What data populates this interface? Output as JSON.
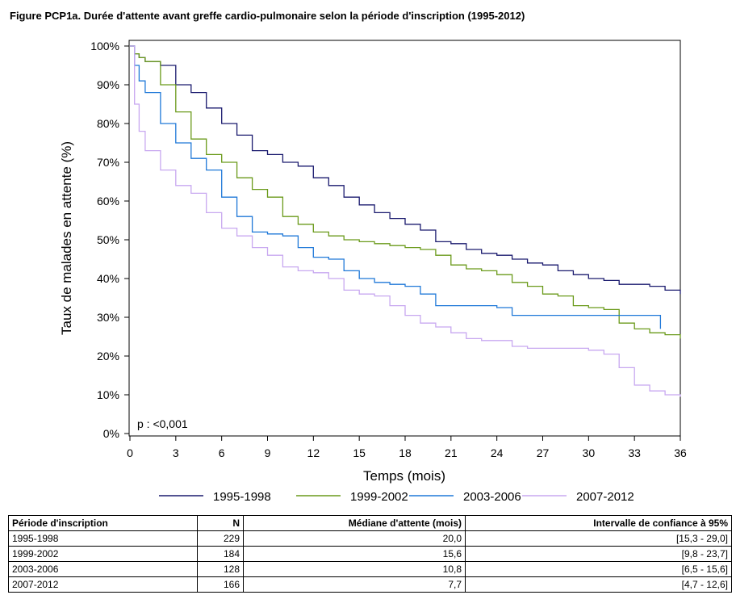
{
  "title": "Figure PCP1a. Durée d'attente avant greffe cardio-pulmonaire selon la période d'inscription (1995-2012)",
  "annotation": "p : <0,001",
  "chart_data": {
    "type": "line",
    "title": "Figure PCP1a. Durée d'attente avant greffe cardio-pulmonaire selon la période d'inscription (1995-2012)",
    "xlabel": "Temps (mois)",
    "ylabel": "Taux de malades en attente (%)",
    "xlim": [
      0,
      36
    ],
    "ylim": [
      0,
      100
    ],
    "xticks": [
      "0",
      "3",
      "6",
      "9",
      "12",
      "15",
      "18",
      "21",
      "24",
      "27",
      "30",
      "33",
      "36"
    ],
    "yticks": [
      "0%",
      "10%",
      "20%",
      "30%",
      "40%",
      "50%",
      "60%",
      "70%",
      "80%",
      "90%",
      "100%"
    ],
    "grid": false,
    "legend": "bottom",
    "series": [
      {
        "name": "1995-1998",
        "color": "#1a1a6e",
        "x": [
          0,
          0.3,
          0.6,
          1,
          2,
          3,
          4,
          5,
          6,
          7,
          8,
          9,
          10,
          11,
          12,
          13,
          14,
          15,
          16,
          17,
          18,
          19,
          20,
          21,
          22,
          23,
          24,
          25,
          26,
          27,
          28,
          29,
          30,
          31,
          32,
          33,
          34,
          35,
          36
        ],
        "y": [
          100,
          98,
          97,
          96,
          95,
          90,
          88,
          84,
          80,
          77,
          73,
          72,
          70,
          69,
          66,
          64,
          61,
          59,
          57,
          55.5,
          54,
          52.5,
          49.5,
          49,
          47.5,
          46.5,
          46,
          45,
          44,
          43.5,
          42,
          41,
          40,
          39.5,
          38.5,
          38.5,
          38,
          37,
          36
        ]
      },
      {
        "name": "1999-2002",
        "color": "#6a9a1a",
        "x": [
          0,
          0.3,
          0.6,
          1,
          2,
          3,
          4,
          5,
          6,
          7,
          8,
          9,
          10,
          11,
          12,
          13,
          14,
          15,
          16,
          17,
          18,
          19,
          20,
          21,
          22,
          23,
          24,
          25,
          26,
          27,
          28,
          29,
          30,
          31,
          32,
          33,
          34,
          35,
          36
        ],
        "y": [
          100,
          98,
          97,
          96,
          90,
          83,
          76,
          72,
          70,
          66,
          63,
          61,
          56,
          54,
          52,
          51,
          50,
          49.5,
          49,
          48.5,
          48,
          47.5,
          46,
          43.5,
          42.5,
          42,
          41,
          39,
          38,
          36,
          35.5,
          33,
          32.5,
          32,
          28.5,
          27,
          26,
          25.5,
          24.5
        ]
      },
      {
        "name": "2003-2006",
        "color": "#1f78d8",
        "x": [
          0,
          0.3,
          0.6,
          1,
          2,
          3,
          4,
          5,
          6,
          7,
          8,
          9,
          10,
          11,
          12,
          13,
          14,
          15,
          16,
          17,
          18,
          19,
          20,
          21,
          22,
          23,
          24,
          25,
          26,
          27,
          28,
          29,
          30,
          31,
          32,
          33,
          34,
          34.6,
          34.7
        ],
        "y": [
          100,
          95,
          91,
          88,
          80,
          75,
          71,
          68,
          61,
          56,
          52,
          51.5,
          51,
          48,
          45.5,
          45,
          42,
          40,
          39,
          38.5,
          38,
          36,
          33,
          33,
          33,
          33,
          32.5,
          30.5,
          30.5,
          30.5,
          30.5,
          30.5,
          30.5,
          30.5,
          30.5,
          30.5,
          30.5,
          30.5,
          27
        ]
      },
      {
        "name": "2007-2012",
        "color": "#c8a8f0",
        "x": [
          0,
          0.3,
          0.6,
          1,
          2,
          3,
          4,
          5,
          6,
          7,
          8,
          9,
          10,
          11,
          12,
          13,
          14,
          15,
          16,
          17,
          18,
          19,
          20,
          21,
          22,
          23,
          24,
          25,
          26,
          27,
          28,
          29,
          30,
          31,
          32,
          33,
          34,
          35,
          36
        ],
        "y": [
          100,
          85,
          78,
          73,
          68,
          64,
          62,
          57,
          53,
          51,
          48,
          46,
          43,
          42,
          41.5,
          40,
          37,
          36,
          35.5,
          33,
          30.5,
          28.5,
          27.5,
          26,
          24.5,
          24,
          24,
          22.5,
          22,
          22,
          22,
          22,
          21.5,
          20.5,
          17,
          12.5,
          11,
          10,
          9.5
        ]
      }
    ]
  },
  "legend": [
    {
      "label": "1995-1998",
      "color": "#1a1a6e"
    },
    {
      "label": "1999-2002",
      "color": "#6a9a1a"
    },
    {
      "label": "2003-2006",
      "color": "#1f78d8"
    },
    {
      "label": "2007-2012",
      "color": "#c8a8f0"
    }
  ],
  "table": {
    "headers": [
      "Période d'inscription",
      "N",
      "Médiane d'attente (mois)",
      "Intervalle de confiance à 95%"
    ],
    "rows": [
      [
        "1995-1998",
        "229",
        "20,0",
        "[15,3 - 29,0]"
      ],
      [
        "1999-2002",
        "184",
        "15,6",
        "[9,8 - 23,7]"
      ],
      [
        "2003-2006",
        "128",
        "10,8",
        "[6,5 - 15,6]"
      ],
      [
        "2007-2012",
        "166",
        "7,7",
        "[4,7 - 12,6]"
      ]
    ]
  }
}
